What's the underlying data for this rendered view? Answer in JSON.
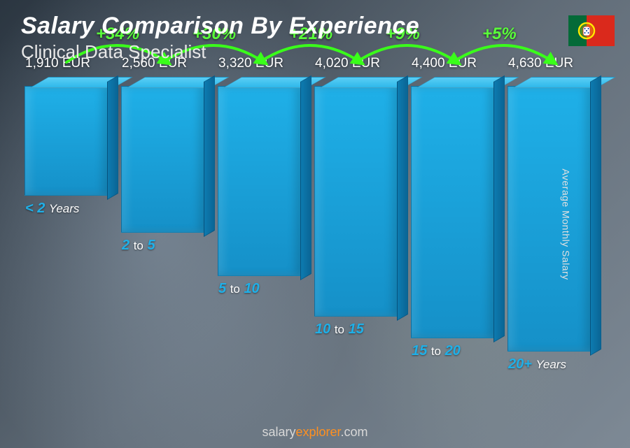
{
  "header": {
    "title": "Salary Comparison By Experience",
    "subtitle": "Clinical Data Specialist"
  },
  "flag": {
    "name": "portugal-flag",
    "green": "#046a38",
    "red": "#da291c",
    "yellow": "#ffe900"
  },
  "y_axis_label": "Average Monthly Salary",
  "footer": {
    "brand_prefix": "salary",
    "brand_accent": "explorer",
    "brand_suffix": ".com"
  },
  "chart": {
    "type": "bar",
    "max_value": 4630,
    "bar_color_top": "#5acef5",
    "bar_color_main": "#1fb0e8",
    "bar_color_side": "#0d7bb0",
    "value_suffix": " EUR",
    "label_color": "#1fb0e8",
    "arc_color": "#3aff1a",
    "arc_label_color": "#5aff3a",
    "background_gradient": [
      "#3a4a5a",
      "#8a9aaa"
    ],
    "bars": [
      {
        "label_pre": "< 2",
        "label_post": "Years",
        "value": 1910,
        "delta": null
      },
      {
        "label_pre": "2",
        "label_mid": "to",
        "label_post": "5",
        "value": 2560,
        "delta": "+34%"
      },
      {
        "label_pre": "5",
        "label_mid": "to",
        "label_post": "10",
        "value": 3320,
        "delta": "+30%"
      },
      {
        "label_pre": "10",
        "label_mid": "to",
        "label_post": "15",
        "value": 4020,
        "delta": "+21%"
      },
      {
        "label_pre": "15",
        "label_mid": "to",
        "label_post": "20",
        "value": 4400,
        "delta": "+9%"
      },
      {
        "label_pre": "20+",
        "label_post": "Years",
        "value": 4630,
        "delta": "+5%"
      }
    ]
  }
}
